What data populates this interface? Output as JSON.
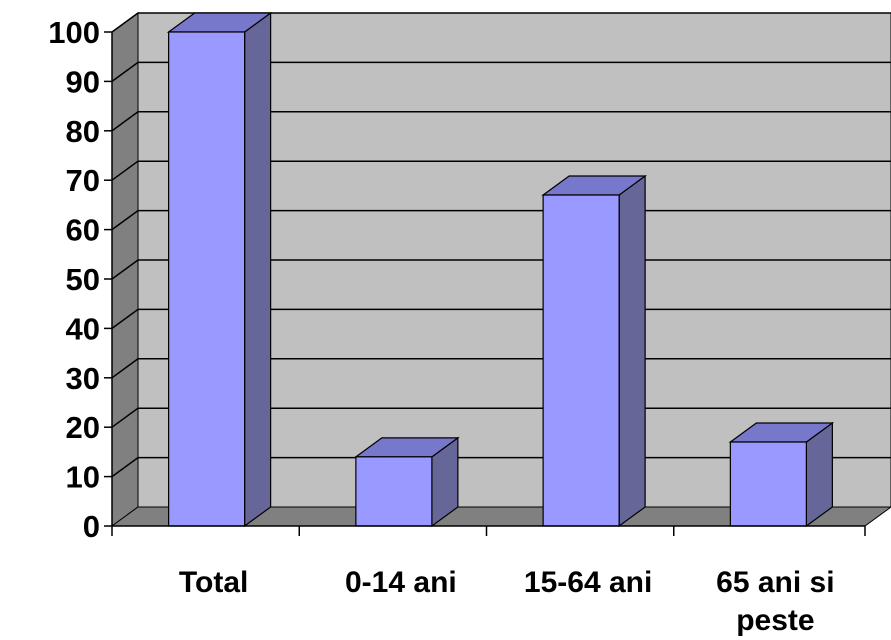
{
  "chart_data": {
    "type": "bar",
    "categories": [
      "Total",
      "0-14 ani",
      "15-64 ani",
      "65 ani si peste"
    ],
    "category_lines": [
      [
        "Total"
      ],
      [
        "0-14 ani"
      ],
      [
        "15-64 ani"
      ],
      [
        "65 ani si",
        "peste"
      ]
    ],
    "values": [
      100,
      14,
      67,
      17
    ],
    "ylim": [
      0,
      100
    ],
    "yticks": [
      "0",
      "10",
      "20",
      "30",
      "40",
      "50",
      "60",
      "70",
      "80",
      "90",
      "100"
    ],
    "grid": true,
    "style": "3d-column",
    "colors": {
      "bar_front": "#9999FF",
      "bar_side": "#666699",
      "bar_top": "#7777CC",
      "wall": "#C0C0C0",
      "side_wall": "#808080",
      "floor": "#808080",
      "grid": "#000000"
    }
  }
}
